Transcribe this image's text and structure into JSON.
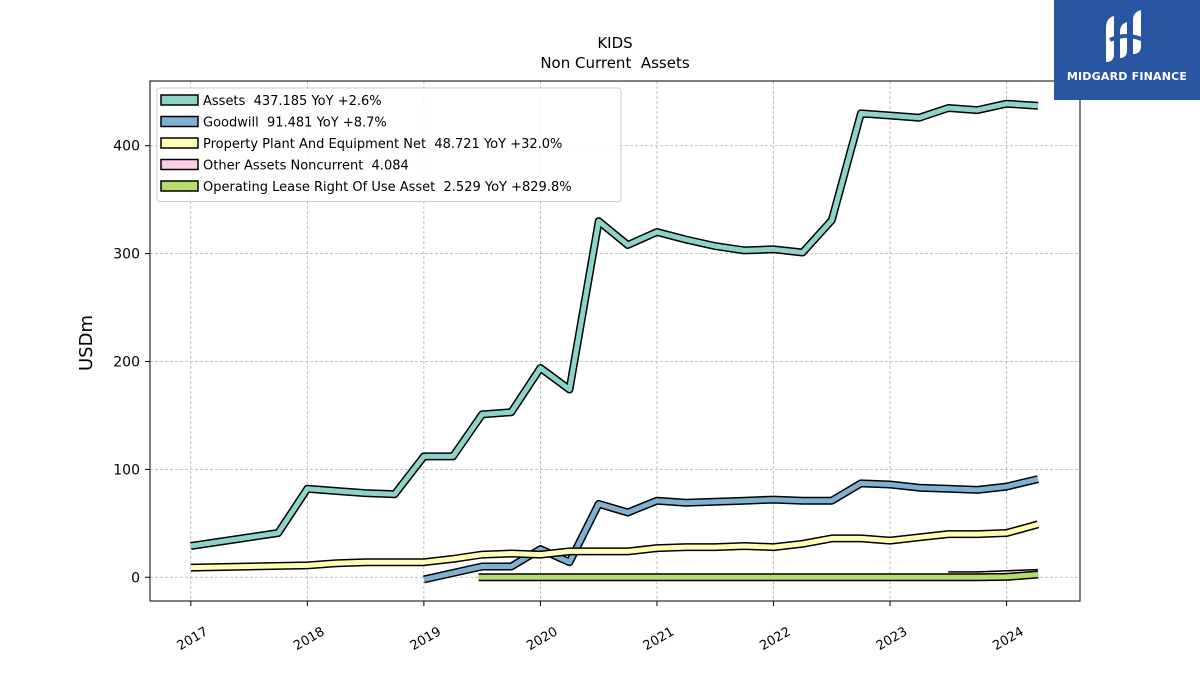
{
  "logo": {
    "name": "MIDGARD FINANCE"
  },
  "chart_data": {
    "type": "line",
    "title": "KIDS",
    "subtitle": "Non Current  Assets",
    "ylabel": "USDm",
    "xlabel": "",
    "ylim": [
      -22,
      460
    ],
    "xlim": [
      2016.65,
      2024.63
    ],
    "x_ticks": [
      2017,
      2018,
      2019,
      2020,
      2021,
      2022,
      2023,
      2024
    ],
    "y_ticks": [
      0,
      100,
      200,
      300,
      400
    ],
    "grid": true,
    "legend_position": "top-left",
    "series": [
      {
        "name": "Assets",
        "legend": "Assets  437.185 YoY +2.6%",
        "color": "#8dd3c7",
        "x": [
          2017.0,
          2017.75,
          2018.0,
          2018.25,
          2018.5,
          2018.75,
          2019.0,
          2019.25,
          2019.5,
          2019.75,
          2020.0,
          2020.25,
          2020.5,
          2020.75,
          2021.0,
          2021.25,
          2021.5,
          2021.75,
          2022.0,
          2022.25,
          2022.5,
          2022.75,
          2023.0,
          2023.25,
          2023.5,
          2023.75,
          2024.0,
          2024.27
        ],
        "y": [
          29,
          41,
          82,
          80,
          78,
          77,
          112,
          112,
          151,
          153,
          194,
          174,
          330,
          308,
          320,
          313,
          307,
          303,
          304,
          301,
          331,
          430,
          428,
          426,
          435,
          433,
          439,
          437
        ]
      },
      {
        "name": "Goodwill",
        "legend": "Goodwill  91.481 YoY +8.7%",
        "color": "#80b1d3",
        "x": [
          2019.0,
          2019.5,
          2019.75,
          2020.0,
          2020.25,
          2020.5,
          2020.75,
          2021.0,
          2021.25,
          2021.5,
          2021.75,
          2022.0,
          2022.25,
          2022.5,
          2022.75,
          2023.0,
          2023.25,
          2023.5,
          2023.75,
          2024.0,
          2024.27
        ],
        "y": [
          -2,
          10,
          10,
          26,
          14,
          68,
          60,
          71,
          69,
          70,
          71,
          72,
          71,
          71,
          87,
          86,
          83,
          82,
          81,
          84,
          91
        ]
      },
      {
        "name": "Property Plant And Equipment Net",
        "legend": "Property Plant And Equipment Net  48.721 YoY +32.0%",
        "color": "#ffffb3",
        "x": [
          2017.0,
          2017.5,
          2018.0,
          2018.25,
          2018.5,
          2018.75,
          2019.0,
          2019.25,
          2019.5,
          2019.75,
          2020.0,
          2020.25,
          2020.5,
          2020.75,
          2021.0,
          2021.25,
          2021.5,
          2021.75,
          2022.0,
          2022.25,
          2022.5,
          2022.75,
          2023.0,
          2023.25,
          2023.5,
          2023.75,
          2024.0,
          2024.27
        ],
        "y": [
          9,
          10,
          11,
          13,
          14,
          14,
          14,
          17,
          21,
          22,
          21,
          24,
          24,
          24,
          27,
          28,
          28,
          29,
          28,
          31,
          36,
          36,
          34,
          37,
          40,
          40,
          41,
          49
        ]
      },
      {
        "name": "Other Assets Noncurrent",
        "legend": "Other Assets Noncurrent  4.084",
        "color": "#fccde5",
        "x": [
          2023.5,
          2023.75,
          2024.0,
          2024.27
        ],
        "y": [
          2,
          2,
          3,
          4.084
        ]
      },
      {
        "name": "Operating Lease Right Of Use Asset",
        "legend": "Operating Lease Right Of Use Asset  2.529 YoY +829.8%",
        "color": "#b3de69",
        "x": [
          2019.47,
          2020.0,
          2020.5,
          2021.0,
          2021.5,
          2022.0,
          2022.5,
          2023.0,
          2023.5,
          2023.75,
          2024.0,
          2024.27
        ],
        "y": [
          0,
          0,
          0,
          0,
          0,
          0,
          0,
          0,
          0,
          0,
          0.3,
          2.529
        ]
      }
    ]
  }
}
